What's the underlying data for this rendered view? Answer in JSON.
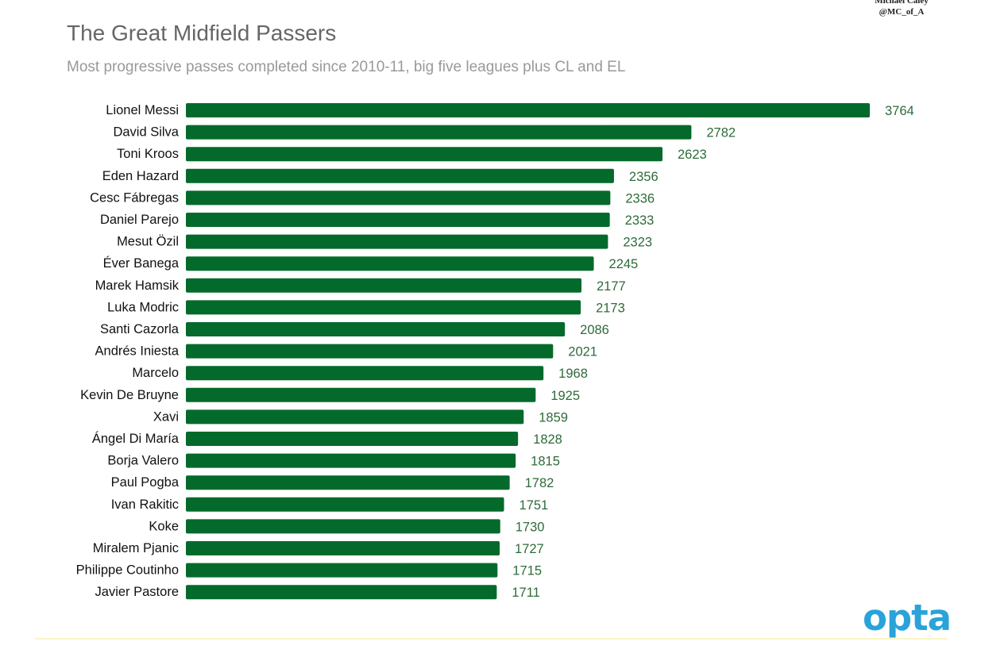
{
  "credit": {
    "line1": "Michael Caley",
    "line2": "@MC_of_A"
  },
  "logo": "opta",
  "colors": {
    "bar": "#046a2b",
    "value_text": "#2e6b3a",
    "label_text": "#111111",
    "logo": "#29a3d9"
  },
  "chart_data": {
    "type": "bar",
    "orientation": "horizontal",
    "title": "The Great Midfield Passers",
    "subtitle": "Most progressive passes completed since 2010-11, big five leagues plus CL and EL",
    "xlabel": "",
    "ylabel": "",
    "xlim": [
      0,
      3764
    ],
    "grid": false,
    "legend": "none",
    "categories": [
      "Lionel Messi",
      "David Silva",
      "Toni Kroos",
      "Eden Hazard",
      "Cesc Fábregas",
      "Daniel Parejo",
      "Mesut Özil",
      "Éver Banega",
      "Marek Hamsik",
      "Luka Modric",
      "Santi Cazorla",
      "Andrés Iniesta",
      "Marcelo",
      "Kevin De Bruyne",
      "Xavi",
      "Ángel Di María",
      "Borja Valero",
      "Paul Pogba",
      "Ivan Rakitic",
      "Koke",
      "Miralem Pjanic",
      "Philippe Coutinho",
      "Javier Pastore"
    ],
    "values": [
      3764,
      2782,
      2623,
      2356,
      2336,
      2333,
      2323,
      2245,
      2177,
      2173,
      2086,
      2021,
      1968,
      1925,
      1859,
      1828,
      1815,
      1782,
      1751,
      1730,
      1727,
      1715,
      1711
    ]
  }
}
